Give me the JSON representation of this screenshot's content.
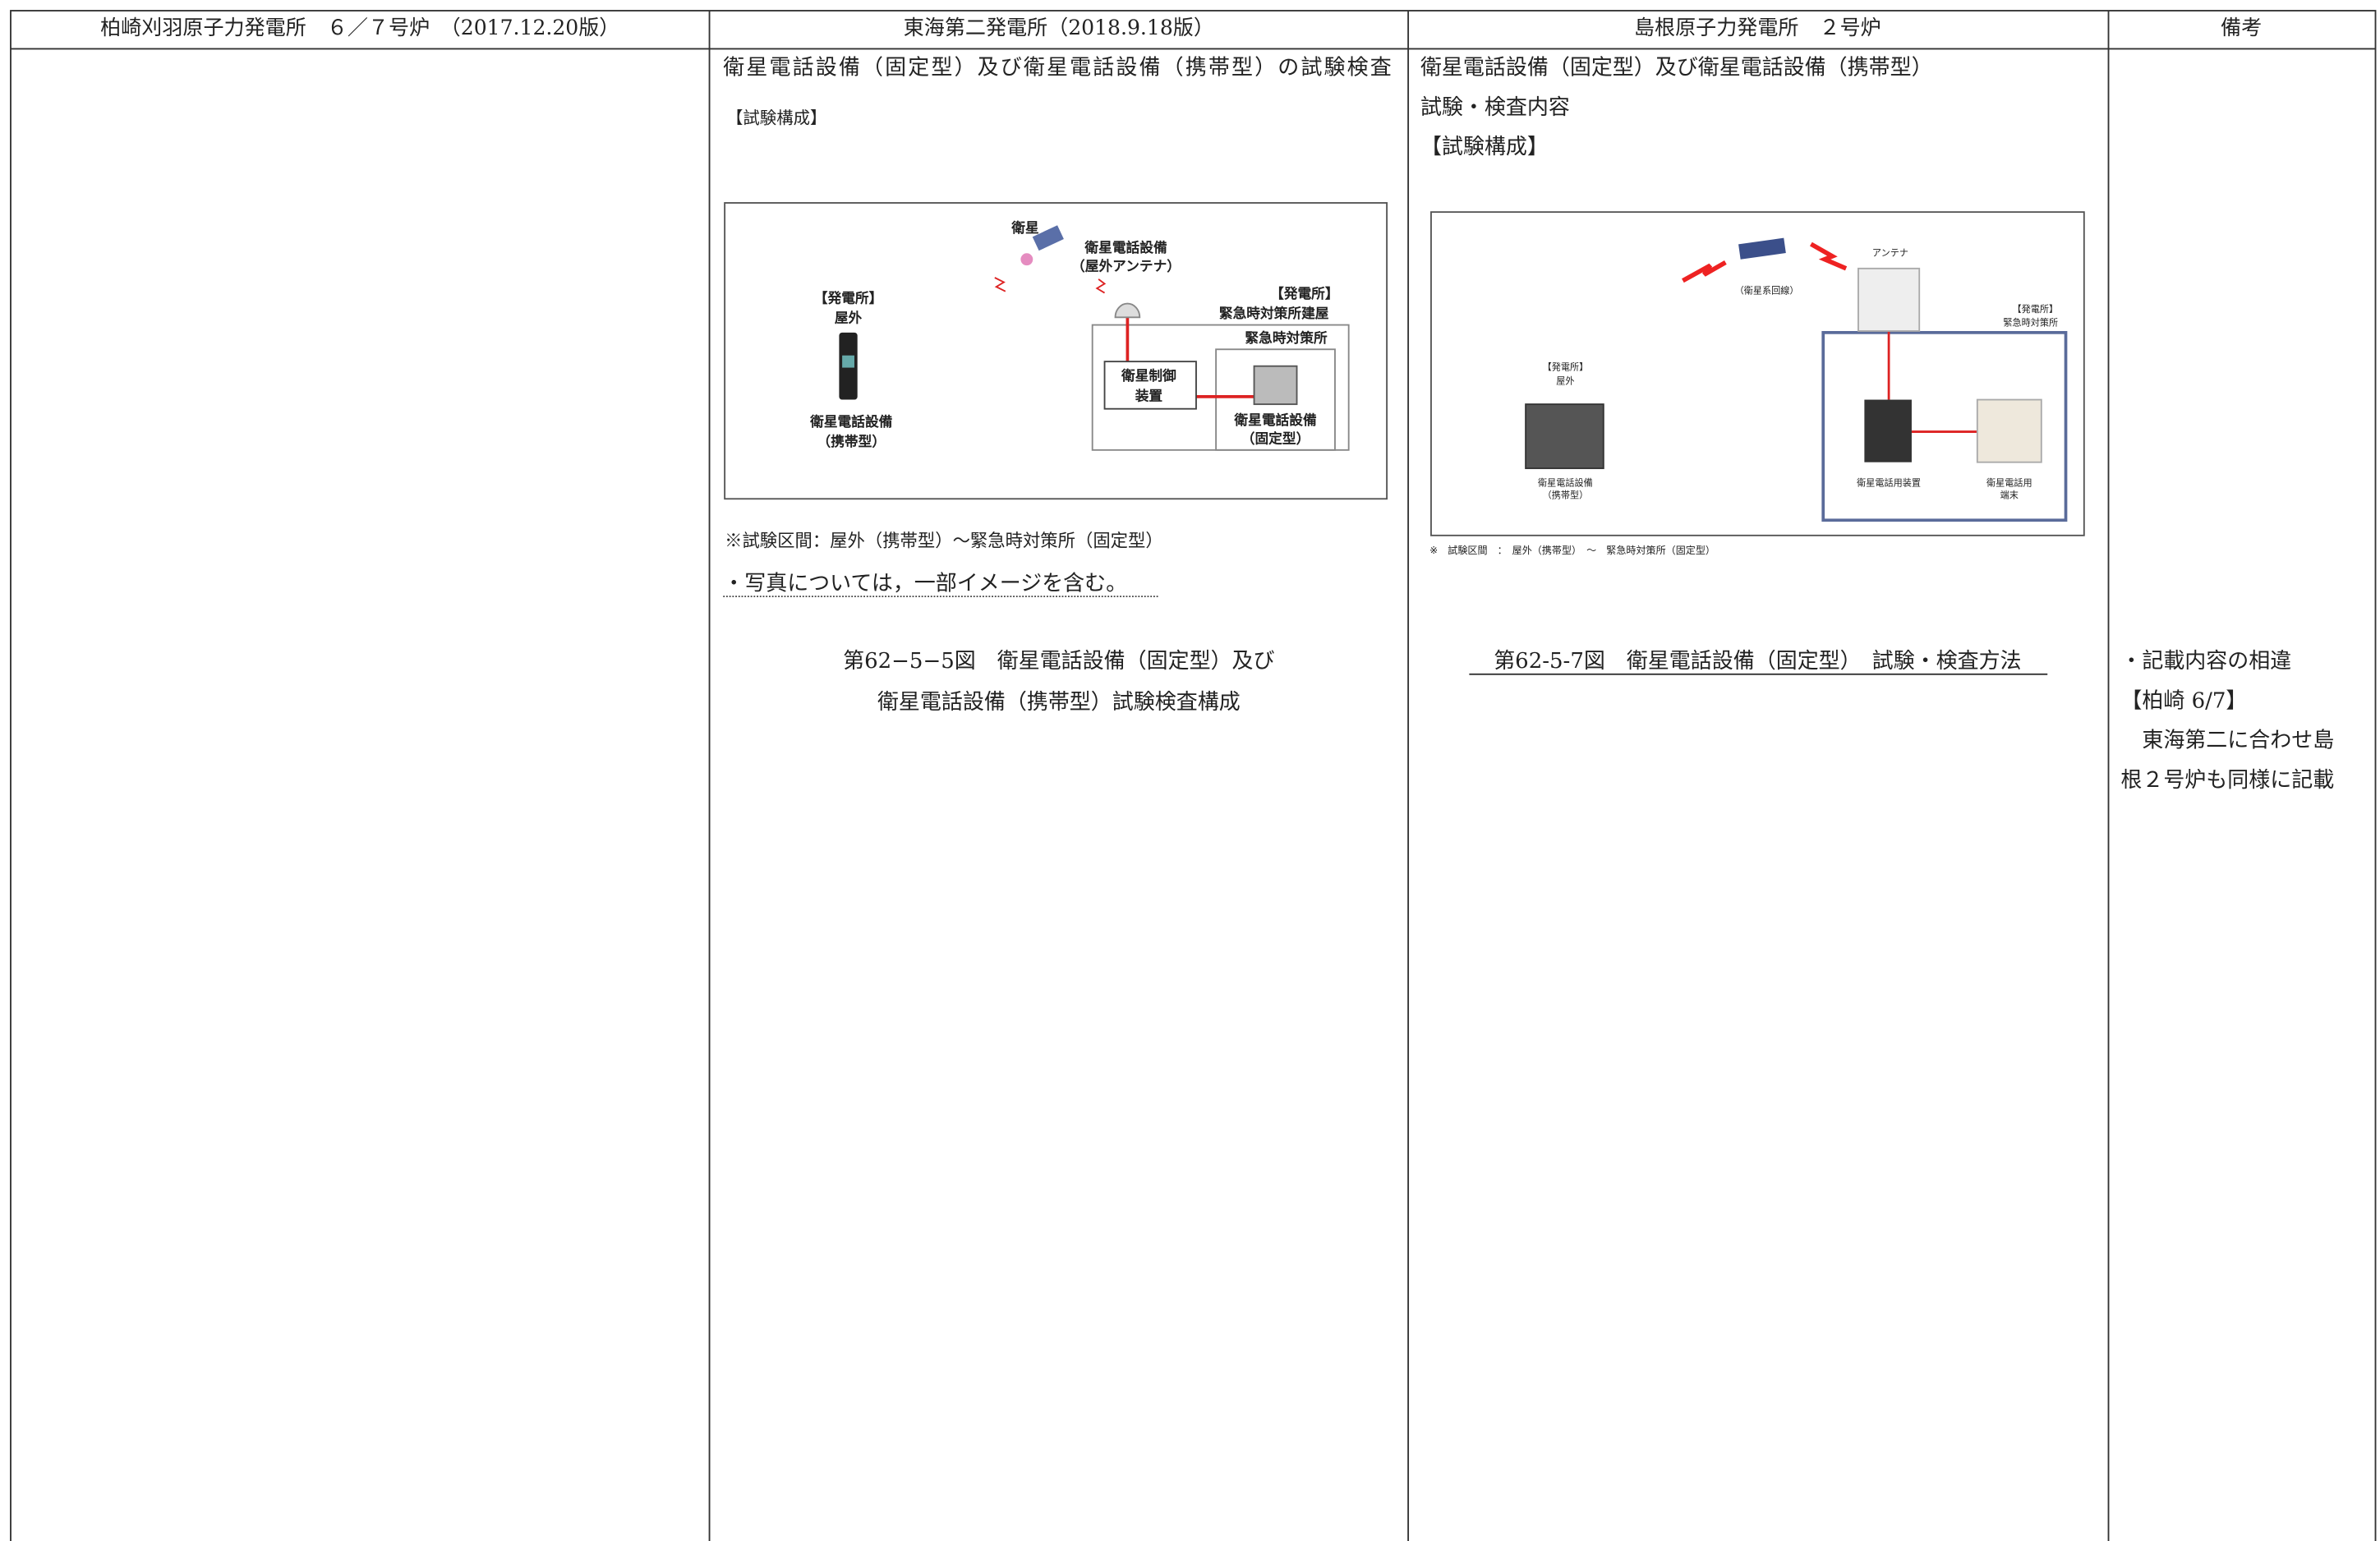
{
  "header": {
    "columns": [
      "柏崎刈羽原子力発電所　６／７号炉　（2017.12.20版）",
      "東海第二発電所（2018.9.18版）",
      "島根原子力発電所　２号炉",
      "備考"
    ]
  },
  "tokai": {
    "title": "衛星電話設備（固定型）及び衛星電話設備（携帯型）の試験検査",
    "section": "【試験構成】",
    "diagram": {
      "satellite": "衛星",
      "antenna_line1": "衛星電話設備",
      "antenna_line2": "（屋外アンテナ）",
      "outdoor_line1": "【発電所】",
      "outdoor_line2": "屋外",
      "portable_line1": "衛星電話設備",
      "portable_line2": "（携帯型）",
      "building_line1": "【発電所】",
      "building_line2": "緊急時対策所建屋",
      "room": "緊急時対策所",
      "control_line1": "衛星制御",
      "control_line2": "装置",
      "fixed_line1": "衛星電話設備",
      "fixed_line2": "（固定型）"
    },
    "note": "※試験区間：屋外（携帯型）～緊急時対策所（固定型）",
    "photo_note": "・写真については，一部イメージを含む。",
    "caption_line1": "第62−5−5図　衛星電話設備（固定型）及び",
    "caption_line2": "衛星電話設備（携帯型）試験検査構成"
  },
  "shimane": {
    "title_line1": "衛星電話設備（固定型）及び衛星電話設備（携帯型）",
    "title_line2": "試験・検査内容",
    "section": "【試験構成】",
    "diagram": {
      "circuit": "（衛星系回線）",
      "antenna": "アンテナ",
      "room_line1": "【発電所】",
      "room_line2": "緊急時対策所",
      "outdoor_line1": "【発電所】",
      "outdoor_line2": "屋外",
      "portable_line1": "衛星電話設備",
      "portable_line2": "（携帯型）",
      "device": "衛星電話用装置",
      "terminal_line1": "衛星電話用",
      "terminal_line2": "端末"
    },
    "note": "※　試験区間　：　屋外（携帯型）　～　緊急時対策所（固定型）",
    "caption": "第62-5-7図　衛星電話設備（固定型）　試験・検査方法"
  },
  "remarks": {
    "lines": [
      "・記載内容の相違",
      "【柏崎 6/7】",
      "　東海第二に合わせ島",
      "根２号炉も同様に記載"
    ]
  }
}
